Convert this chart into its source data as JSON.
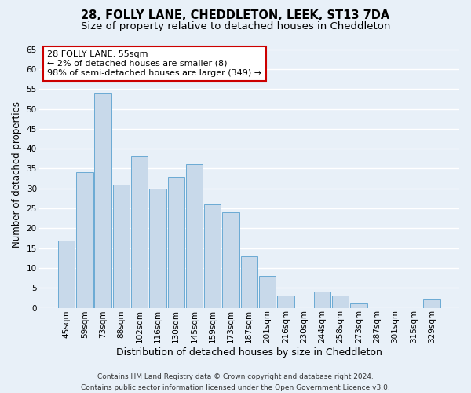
{
  "title1": "28, FOLLY LANE, CHEDDLETON, LEEK, ST13 7DA",
  "title2": "Size of property relative to detached houses in Cheddleton",
  "xlabel": "Distribution of detached houses by size in Cheddleton",
  "ylabel": "Number of detached properties",
  "categories": [
    "45sqm",
    "59sqm",
    "73sqm",
    "88sqm",
    "102sqm",
    "116sqm",
    "130sqm",
    "145sqm",
    "159sqm",
    "173sqm",
    "187sqm",
    "201sqm",
    "216sqm",
    "230sqm",
    "244sqm",
    "258sqm",
    "273sqm",
    "287sqm",
    "301sqm",
    "315sqm",
    "329sqm"
  ],
  "values": [
    17,
    34,
    54,
    31,
    38,
    30,
    33,
    36,
    26,
    24,
    13,
    8,
    3,
    0,
    4,
    3,
    1,
    0,
    0,
    0,
    2
  ],
  "bar_color": "#c8d9ea",
  "bar_edge_color": "#6aaad4",
  "annotation_title": "28 FOLLY LANE: 55sqm",
  "annotation_line1": "← 2% of detached houses are smaller (8)",
  "annotation_line2": "98% of semi-detached houses are larger (349) →",
  "annotation_box_color": "#ffffff",
  "annotation_box_edge": "#cc0000",
  "ylim": [
    0,
    67
  ],
  "yticks": [
    0,
    5,
    10,
    15,
    20,
    25,
    30,
    35,
    40,
    45,
    50,
    55,
    60,
    65
  ],
  "footer1": "Contains HM Land Registry data © Crown copyright and database right 2024.",
  "footer2": "Contains public sector information licensed under the Open Government Licence v3.0.",
  "bg_color": "#e8f0f8",
  "grid_color": "#ffffff",
  "title1_fontsize": 10.5,
  "title2_fontsize": 9.5,
  "xlabel_fontsize": 9,
  "ylabel_fontsize": 8.5,
  "tick_fontsize": 7.5,
  "annotation_fontsize": 8,
  "footer_fontsize": 6.5
}
